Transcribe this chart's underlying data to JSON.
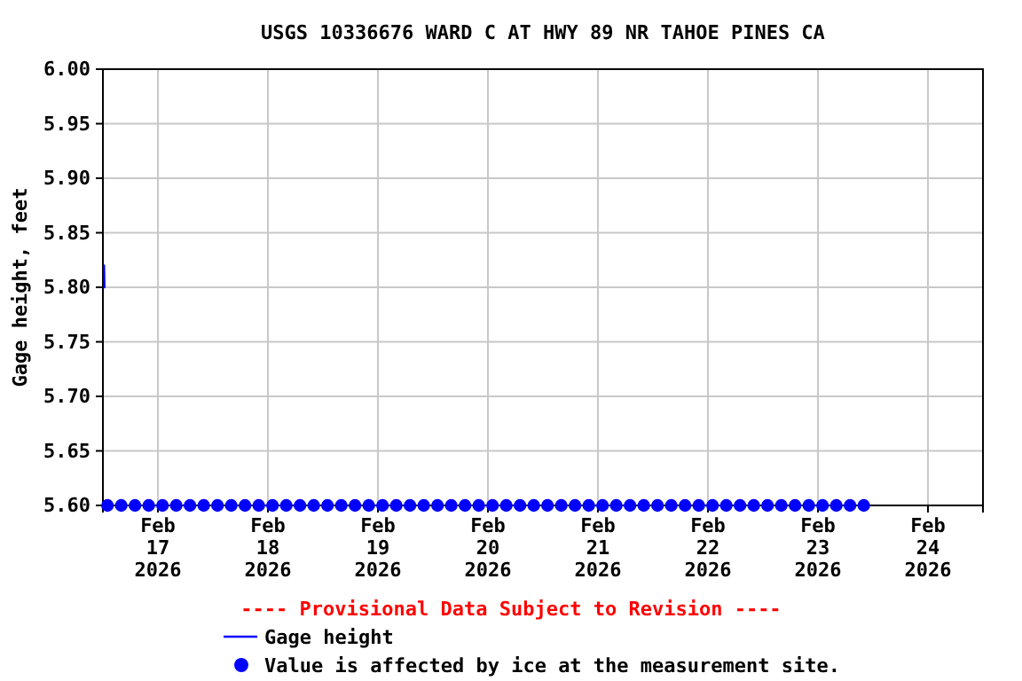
{
  "chart_data": {
    "type": "line",
    "title": "USGS 10336676 WARD C AT HWY 89 NR TAHOE PINES CA",
    "ylabel": "Gage height, feet",
    "xlim": [
      "2026-02-16T12:00",
      "2026-02-24T12:00"
    ],
    "xticks": [
      {
        "value": "2026-02-17",
        "label": "Feb\n17\n2026"
      },
      {
        "value": "2026-02-18",
        "label": "Feb\n18\n2026"
      },
      {
        "value": "2026-02-19",
        "label": "Feb\n19\n2026"
      },
      {
        "value": "2026-02-20",
        "label": "Feb\n20\n2026"
      },
      {
        "value": "2026-02-21",
        "label": "Feb\n21\n2026"
      },
      {
        "value": "2026-02-22",
        "label": "Feb\n22\n2026"
      },
      {
        "value": "2026-02-23",
        "label": "Feb\n23\n2026"
      },
      {
        "value": "2026-02-24",
        "label": "Feb\n24\n2026"
      }
    ],
    "ylim": [
      5.6,
      6.0
    ],
    "yticks": [
      {
        "value": 5.6,
        "label": "5.60"
      },
      {
        "value": 5.65,
        "label": "5.65"
      },
      {
        "value": 5.7,
        "label": "5.70"
      },
      {
        "value": 5.75,
        "label": "5.75"
      },
      {
        "value": 5.8,
        "label": "5.80"
      },
      {
        "value": 5.85,
        "label": "5.85"
      },
      {
        "value": 5.9,
        "label": "5.90"
      },
      {
        "value": 5.95,
        "label": "5.95"
      },
      {
        "value": 6.0,
        "label": "6.00"
      }
    ],
    "grid": true,
    "legend": "bottom",
    "annotations": [
      "---- Provisional Data Subject to Revision ----"
    ],
    "series": [
      {
        "name": "Value is affected by ice at the measurement site.",
        "type": "scatter",
        "marker": "circle",
        "color": "#0000ff",
        "x": [
          "2026-02-16T13:00",
          "2026-02-16T16:00",
          "2026-02-16T19:00",
          "2026-02-16T22:00",
          "2026-02-17T01:00",
          "2026-02-17T04:00",
          "2026-02-17T07:00",
          "2026-02-17T10:00",
          "2026-02-17T13:00",
          "2026-02-17T16:00",
          "2026-02-17T19:00",
          "2026-02-17T22:00",
          "2026-02-18T01:00",
          "2026-02-18T04:00",
          "2026-02-18T07:00",
          "2026-02-18T10:00",
          "2026-02-18T13:00",
          "2026-02-18T16:00",
          "2026-02-18T19:00",
          "2026-02-18T22:00",
          "2026-02-19T01:00",
          "2026-02-19T04:00",
          "2026-02-19T07:00",
          "2026-02-19T10:00",
          "2026-02-19T13:00",
          "2026-02-19T16:00",
          "2026-02-19T19:00",
          "2026-02-19T22:00",
          "2026-02-20T01:00",
          "2026-02-20T04:00",
          "2026-02-20T07:00",
          "2026-02-20T10:00",
          "2026-02-20T13:00",
          "2026-02-20T16:00",
          "2026-02-20T19:00",
          "2026-02-20T22:00",
          "2026-02-21T01:00",
          "2026-02-21T04:00",
          "2026-02-21T07:00",
          "2026-02-21T10:00",
          "2026-02-21T13:00",
          "2026-02-21T16:00",
          "2026-02-21T19:00",
          "2026-02-21T22:00",
          "2026-02-22T01:00",
          "2026-02-22T04:00",
          "2026-02-22T07:00",
          "2026-02-22T10:00",
          "2026-02-22T13:00",
          "2026-02-22T16:00",
          "2026-02-22T19:00",
          "2026-02-22T22:00",
          "2026-02-23T01:00",
          "2026-02-23T04:00",
          "2026-02-23T07:00",
          "2026-02-23T10:00"
        ],
        "values": [
          5.6,
          5.6,
          5.6,
          5.6,
          5.6,
          5.6,
          5.6,
          5.6,
          5.6,
          5.6,
          5.6,
          5.6,
          5.6,
          5.6,
          5.6,
          5.6,
          5.6,
          5.6,
          5.6,
          5.6,
          5.6,
          5.6,
          5.6,
          5.6,
          5.6,
          5.6,
          5.6,
          5.6,
          5.6,
          5.6,
          5.6,
          5.6,
          5.6,
          5.6,
          5.6,
          5.6,
          5.6,
          5.6,
          5.6,
          5.6,
          5.6,
          5.6,
          5.6,
          5.6,
          5.6,
          5.6,
          5.6,
          5.6,
          5.6,
          5.6,
          5.6,
          5.6,
          5.6,
          5.6,
          5.6,
          5.6
        ]
      },
      {
        "name": "Gage height",
        "color": "#0000ff",
        "x": [
          "2026-02-16T12:15",
          "2026-02-16T12:20"
        ],
        "values": [
          5.82,
          5.8
        ]
      }
    ]
  }
}
